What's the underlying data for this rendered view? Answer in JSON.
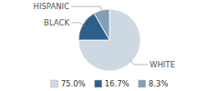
{
  "chart_data": {
    "type": "pie",
    "categories": [
      "WHITE",
      "BLACK",
      "HISPANIC"
    ],
    "values": [
      75.0,
      16.7,
      8.3
    ],
    "value_labels": [
      "75.0%",
      "16.7%",
      "8.3%"
    ],
    "colors": [
      "#cdd8e3",
      "#2e5f8a",
      "#7fa0b8"
    ],
    "legend": "bottom"
  }
}
